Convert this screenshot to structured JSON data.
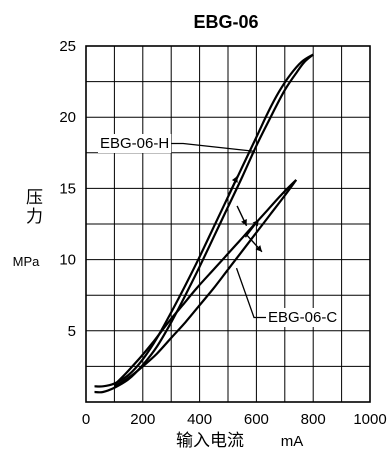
{
  "chart_data": {
    "type": "line",
    "title": "EBG-06",
    "ylabel": "压力",
    "yunit": "MPa",
    "xlabel": "输入电流",
    "xunit": "mA",
    "xlim": [
      0,
      1000
    ],
    "ylim": [
      0,
      25
    ],
    "xticks": [
      0,
      200,
      400,
      600,
      800,
      1000
    ],
    "yticks": [
      5,
      10,
      15,
      20,
      25
    ],
    "grid": true,
    "series": [
      {
        "name": "EBG-06-H",
        "rising": [
          [
            30,
            0.7
          ],
          [
            60,
            0.7
          ],
          [
            100,
            1.0
          ],
          [
            150,
            1.6
          ],
          [
            200,
            2.6
          ],
          [
            250,
            3.9
          ],
          [
            300,
            5.6
          ],
          [
            350,
            7.5
          ],
          [
            400,
            9.5
          ],
          [
            450,
            11.6
          ],
          [
            500,
            13.7
          ],
          [
            550,
            15.8
          ],
          [
            600,
            18.0
          ],
          [
            650,
            20.0
          ],
          [
            700,
            21.9
          ],
          [
            740,
            23.1
          ],
          [
            770,
            23.9
          ],
          [
            800,
            24.4
          ]
        ],
        "falling": [
          [
            800,
            24.4
          ],
          [
            760,
            23.9
          ],
          [
            720,
            23.0
          ],
          [
            680,
            21.8
          ],
          [
            640,
            20.3
          ],
          [
            600,
            18.6
          ],
          [
            550,
            16.5
          ],
          [
            500,
            14.4
          ],
          [
            450,
            12.3
          ],
          [
            400,
            10.2
          ],
          [
            350,
            8.2
          ],
          [
            300,
            6.3
          ],
          [
            250,
            4.5
          ],
          [
            200,
            3.0
          ],
          [
            150,
            1.9
          ],
          [
            100,
            1.3
          ],
          [
            60,
            1.1
          ],
          [
            30,
            1.1
          ]
        ],
        "arrow_down_at": [
          520,
          12.8
        ],
        "arrow_up_at": [
          545,
          14.9
        ]
      },
      {
        "name": "EBG-06-C",
        "rising": [
          [
            100,
            1.1
          ],
          [
            150,
            1.7
          ],
          [
            200,
            2.5
          ],
          [
            250,
            3.4
          ],
          [
            300,
            4.5
          ],
          [
            350,
            5.6
          ],
          [
            400,
            6.8
          ],
          [
            450,
            8.0
          ],
          [
            500,
            9.3
          ],
          [
            550,
            10.6
          ],
          [
            600,
            11.9
          ],
          [
            650,
            13.2
          ],
          [
            700,
            14.5
          ],
          [
            740,
            15.6
          ]
        ],
        "falling": [
          [
            740,
            15.6
          ],
          [
            690,
            14.6
          ],
          [
            640,
            13.5
          ],
          [
            590,
            12.4
          ],
          [
            540,
            11.3
          ],
          [
            490,
            10.2
          ],
          [
            440,
            9.1
          ],
          [
            390,
            8.0
          ],
          [
            340,
            6.8
          ],
          [
            290,
            5.6
          ],
          [
            240,
            4.3
          ],
          [
            190,
            3.1
          ],
          [
            140,
            2.0
          ],
          [
            100,
            1.2
          ]
        ],
        "arrow_down_at": [
          570,
          10.7
        ],
        "arrow_up_at": [
          610,
          11.8
        ]
      }
    ],
    "annotations": [
      {
        "text": "EBG-06-H",
        "target_series": "EBG-06-H",
        "points_to": [
          595,
          17.6
        ]
      },
      {
        "text": "EBG-06-C",
        "target_series": "EBG-06-C",
        "points_to": [
          530,
          9.4
        ]
      }
    ]
  }
}
